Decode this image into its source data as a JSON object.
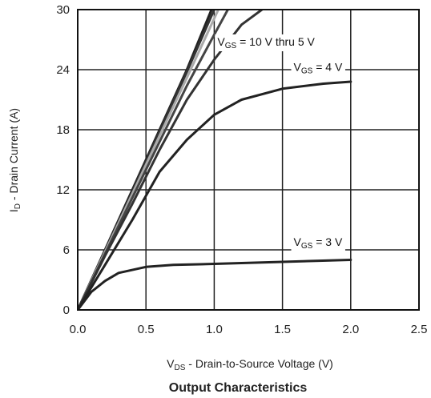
{
  "chart_data": {
    "type": "line",
    "title": "Output Characteristics",
    "xlabel": {
      "main": "V",
      "sub": "DS",
      "rest": " - Drain-to-Source Voltage (V)"
    },
    "ylabel": {
      "main": "I",
      "sub": "D",
      "rest": " - Drain Current (A)"
    },
    "xlim": [
      0,
      2.5
    ],
    "ylim": [
      0,
      30
    ],
    "xticks": [
      "0.0",
      "0.5",
      "1.0",
      "1.5",
      "2.0",
      "2.5"
    ],
    "yticks": [
      "0",
      "6",
      "12",
      "18",
      "24",
      "30"
    ],
    "grid": true,
    "series": [
      {
        "color": "#222222",
        "points": [
          [
            0,
            0
          ],
          [
            0.2,
            6
          ],
          [
            0.4,
            12
          ],
          [
            0.6,
            18
          ],
          [
            0.8,
            24
          ],
          [
            0.98,
            30
          ]
        ]
      },
      {
        "color": "#333333",
        "points": [
          [
            0,
            0
          ],
          [
            0.2,
            5.9
          ],
          [
            0.4,
            11.8
          ],
          [
            0.6,
            17.8
          ],
          [
            0.8,
            23.8
          ],
          [
            1.0,
            30
          ]
        ]
      },
      {
        "color": "#aaaaaa",
        "points": [
          [
            0,
            0
          ],
          [
            0.2,
            5.8
          ],
          [
            0.4,
            11.6
          ],
          [
            0.6,
            17.4
          ],
          [
            0.8,
            23.2
          ],
          [
            1.03,
            30
          ]
        ]
      },
      {
        "color": "#444444",
        "points": [
          [
            0,
            0
          ],
          [
            0.2,
            5.6
          ],
          [
            0.4,
            11.2
          ],
          [
            0.6,
            16.8
          ],
          [
            0.8,
            22.4
          ],
          [
            1.0,
            27.5
          ],
          [
            1.1,
            30
          ]
        ]
      },
      {
        "color": "#333333",
        "points": [
          [
            0,
            0
          ],
          [
            0.2,
            5.4
          ],
          [
            0.4,
            10.6
          ],
          [
            0.6,
            16
          ],
          [
            0.8,
            21
          ],
          [
            1.0,
            25
          ],
          [
            1.2,
            28.5
          ],
          [
            1.35,
            30
          ]
        ]
      },
      {
        "color": "#222222",
        "points": [
          [
            0,
            0
          ],
          [
            0.2,
            4.5
          ],
          [
            0.4,
            9
          ],
          [
            0.6,
            13.8
          ],
          [
            0.8,
            17
          ],
          [
            1.0,
            19.5
          ],
          [
            1.2,
            21
          ],
          [
            1.5,
            22.1
          ],
          [
            1.8,
            22.6
          ],
          [
            2.0,
            22.8
          ]
        ]
      },
      {
        "color": "#222222",
        "points": [
          [
            0,
            0
          ],
          [
            0.1,
            1.8
          ],
          [
            0.2,
            2.9
          ],
          [
            0.3,
            3.7
          ],
          [
            0.5,
            4.3
          ],
          [
            0.7,
            4.5
          ],
          [
            1.0,
            4.6
          ],
          [
            1.5,
            4.8
          ],
          [
            2.0,
            5.0
          ]
        ]
      }
    ],
    "annotations": [
      {
        "main": "V",
        "sub": "GS",
        "rest": " = 10 V thru 5 V",
        "at": [
          1.38,
          26.4
        ]
      },
      {
        "main": "V",
        "sub": "GS",
        "rest": " = 4 V",
        "at": [
          1.76,
          23.9
        ]
      },
      {
        "main": "V",
        "sub": "GS",
        "rest": " = 3 V",
        "at": [
          1.76,
          6.4
        ]
      }
    ]
  }
}
